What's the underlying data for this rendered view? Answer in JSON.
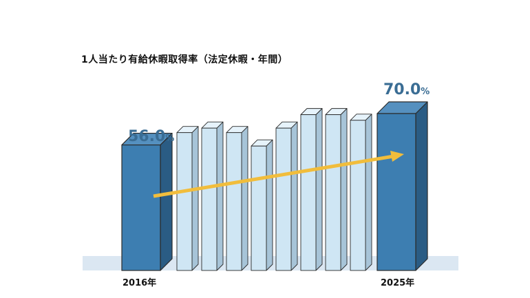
{
  "chart_data": {
    "type": "bar",
    "title": "1人当たり有給休暇取得率（法定休暇・年間）",
    "unit": "%",
    "first_label": "2016年",
    "last_label": "2025年",
    "first_value_text": "56.0",
    "last_value_text": "70.0",
    "values": [
      56.0,
      61.5,
      63.5,
      61.5,
      55.5,
      63.5,
      69.5,
      69.5,
      67.0,
      70.0
    ],
    "highlight": [
      true,
      false,
      false,
      false,
      false,
      false,
      false,
      false,
      false,
      true
    ],
    "trend": "increasing",
    "colors": {
      "highlight_front": "#3d7eb1",
      "highlight_side": "#2a5c84",
      "highlight_top": "#5590bf",
      "normal_front": "#cfe6f4",
      "normal_side": "#a7c4d8",
      "normal_top": "#e6f3fb",
      "outline": "#2b2b2b",
      "arrow": "#f1bd3c",
      "floor": "#dbe7f2",
      "value_text": "#3a6d94"
    }
  }
}
